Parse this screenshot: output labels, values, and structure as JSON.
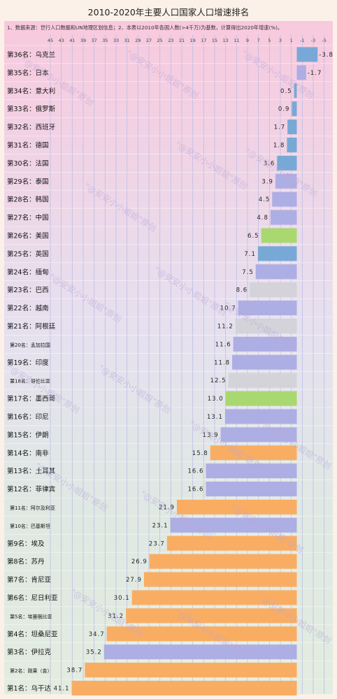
{
  "chart_data": {
    "type": "bar",
    "orientation": "horizontal",
    "title": "2010-2020年主要人口国家人口增速排名",
    "note": "1、数据来源：世行人口数据和UN地理区划信息；2、本表以2010年各国人数(>4千万)为基数，计算得出2020年增速(%)。",
    "x_ticks": [
      "45",
      "43",
      "41",
      "39",
      "37",
      "35",
      "33",
      "31",
      "29",
      "27",
      "25",
      "23",
      "21",
      "19",
      "17",
      "15",
      "13",
      "11",
      "9",
      "7",
      "5",
      "3",
      "1",
      "-1",
      "-3",
      "-5"
    ],
    "xlim": [
      45,
      -6
    ],
    "grid": true,
    "watermark": "\"@安安小小姐姐\"原创",
    "colors": {
      "orange": "#f9ad62",
      "purple": "#adaee3",
      "gray": "#d3d3d9",
      "green": "#a9d870",
      "blue": "#78a9d6"
    },
    "bars": [
      {
        "rank": "第36名：乌克兰",
        "value": -3.8,
        "label": "-3.8",
        "color": "blue"
      },
      {
        "rank": "第35名：日本",
        "value": -1.7,
        "label": "-1.7",
        "color": "purple"
      },
      {
        "rank": "第34名：意大利",
        "value": 0.5,
        "label": "0.5",
        "color": "blue"
      },
      {
        "rank": "第33名：俄罗斯",
        "value": 0.9,
        "label": "0.9",
        "color": "blue"
      },
      {
        "rank": "第32名：西班牙",
        "value": 1.7,
        "label": "1.7",
        "color": "blue"
      },
      {
        "rank": "第31名：德国",
        "value": 1.8,
        "label": "1.8",
        "color": "blue"
      },
      {
        "rank": "第30名：法国",
        "value": 3.6,
        "label": "3.6",
        "color": "blue"
      },
      {
        "rank": "第29名：泰国",
        "value": 3.9,
        "label": "3.9",
        "color": "purple"
      },
      {
        "rank": "第28名：韩国",
        "value": 4.5,
        "label": "4.5",
        "color": "purple"
      },
      {
        "rank": "第27名：中国",
        "value": 4.8,
        "label": "4.8",
        "color": "purple"
      },
      {
        "rank": "第26名：美国",
        "value": 6.5,
        "label": "6.5",
        "color": "green"
      },
      {
        "rank": "第25名：英国",
        "value": 7.1,
        "label": "7.1",
        "color": "blue"
      },
      {
        "rank": "第24名：缅甸",
        "value": 7.5,
        "label": "7.5",
        "color": "purple"
      },
      {
        "rank": "第23名：巴西",
        "value": 8.6,
        "label": "8.6",
        "color": "gray"
      },
      {
        "rank": "第22名：越南",
        "value": 10.7,
        "label": "10.7",
        "color": "purple"
      },
      {
        "rank": "第21名：阿根廷",
        "value": 11.2,
        "label": "11.2",
        "color": "gray"
      },
      {
        "rank": "第20名：孟加拉国",
        "value": 11.6,
        "label": "11.6",
        "color": "purple"
      },
      {
        "rank": "第19名：印度",
        "value": 11.8,
        "label": "11.8",
        "color": "purple"
      },
      {
        "rank": "第18名：哥伦比亚",
        "value": 12.5,
        "label": "12.5",
        "color": "gray"
      },
      {
        "rank": "第17名：墨西哥",
        "value": 13.0,
        "label": "13.0",
        "color": "green"
      },
      {
        "rank": "第16名：印尼",
        "value": 13.1,
        "label": "13.1",
        "color": "purple"
      },
      {
        "rank": "第15名：伊朗",
        "value": 13.9,
        "label": "13.9",
        "color": "purple"
      },
      {
        "rank": "第14名：南非",
        "value": 15.8,
        "label": "15.8",
        "color": "orange"
      },
      {
        "rank": "第13名：土耳其",
        "value": 16.6,
        "label": "16.6",
        "color": "purple"
      },
      {
        "rank": "第12名：菲律宾",
        "value": 16.6,
        "label": "16.6",
        "color": "purple"
      },
      {
        "rank": "第11名：阿尔及利亚",
        "value": 21.9,
        "label": "21.9",
        "color": "orange"
      },
      {
        "rank": "第10名：巴基斯坦",
        "value": 23.1,
        "label": "23.1",
        "color": "purple"
      },
      {
        "rank": "第9名：埃及",
        "value": 23.7,
        "label": "23.7",
        "color": "orange"
      },
      {
        "rank": "第8名：苏丹",
        "value": 26.9,
        "label": "26.9",
        "color": "orange"
      },
      {
        "rank": "第7名：肯尼亚",
        "value": 27.9,
        "label": "27.9",
        "color": "orange"
      },
      {
        "rank": "第6名：尼日利亚",
        "value": 30.1,
        "label": "30.1",
        "color": "orange"
      },
      {
        "rank": "第5名：埃塞俄比亚",
        "value": 31.2,
        "label": "31.2",
        "color": "orange"
      },
      {
        "rank": "第4名：坦桑尼亚",
        "value": 34.7,
        "label": "34.7",
        "color": "orange"
      },
      {
        "rank": "第3名：伊拉克",
        "value": 35.2,
        "label": "35.2",
        "color": "purple"
      },
      {
        "rank": "第2名：刚果（金）",
        "value": 38.7,
        "label": "38.7",
        "color": "orange"
      },
      {
        "rank": "第1名：乌干达",
        "value": 41.1,
        "label": "41.1",
        "color": "orange"
      }
    ]
  }
}
